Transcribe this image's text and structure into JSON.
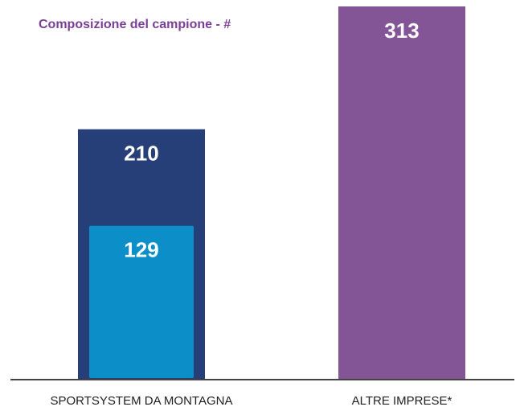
{
  "chart_data": {
    "type": "bar",
    "title": "Composizione del campione - #",
    "categories": [
      "SPORTSYSTEM DA MONTAGNA",
      "ALTRE IMPRESE*"
    ],
    "values": [
      210,
      313
    ],
    "colors": [
      "#273f79",
      "#835496"
    ],
    "inner_values": [
      129,
      null
    ],
    "inner_color": "#0c8ec8",
    "ylim": [
      0,
      313
    ]
  }
}
